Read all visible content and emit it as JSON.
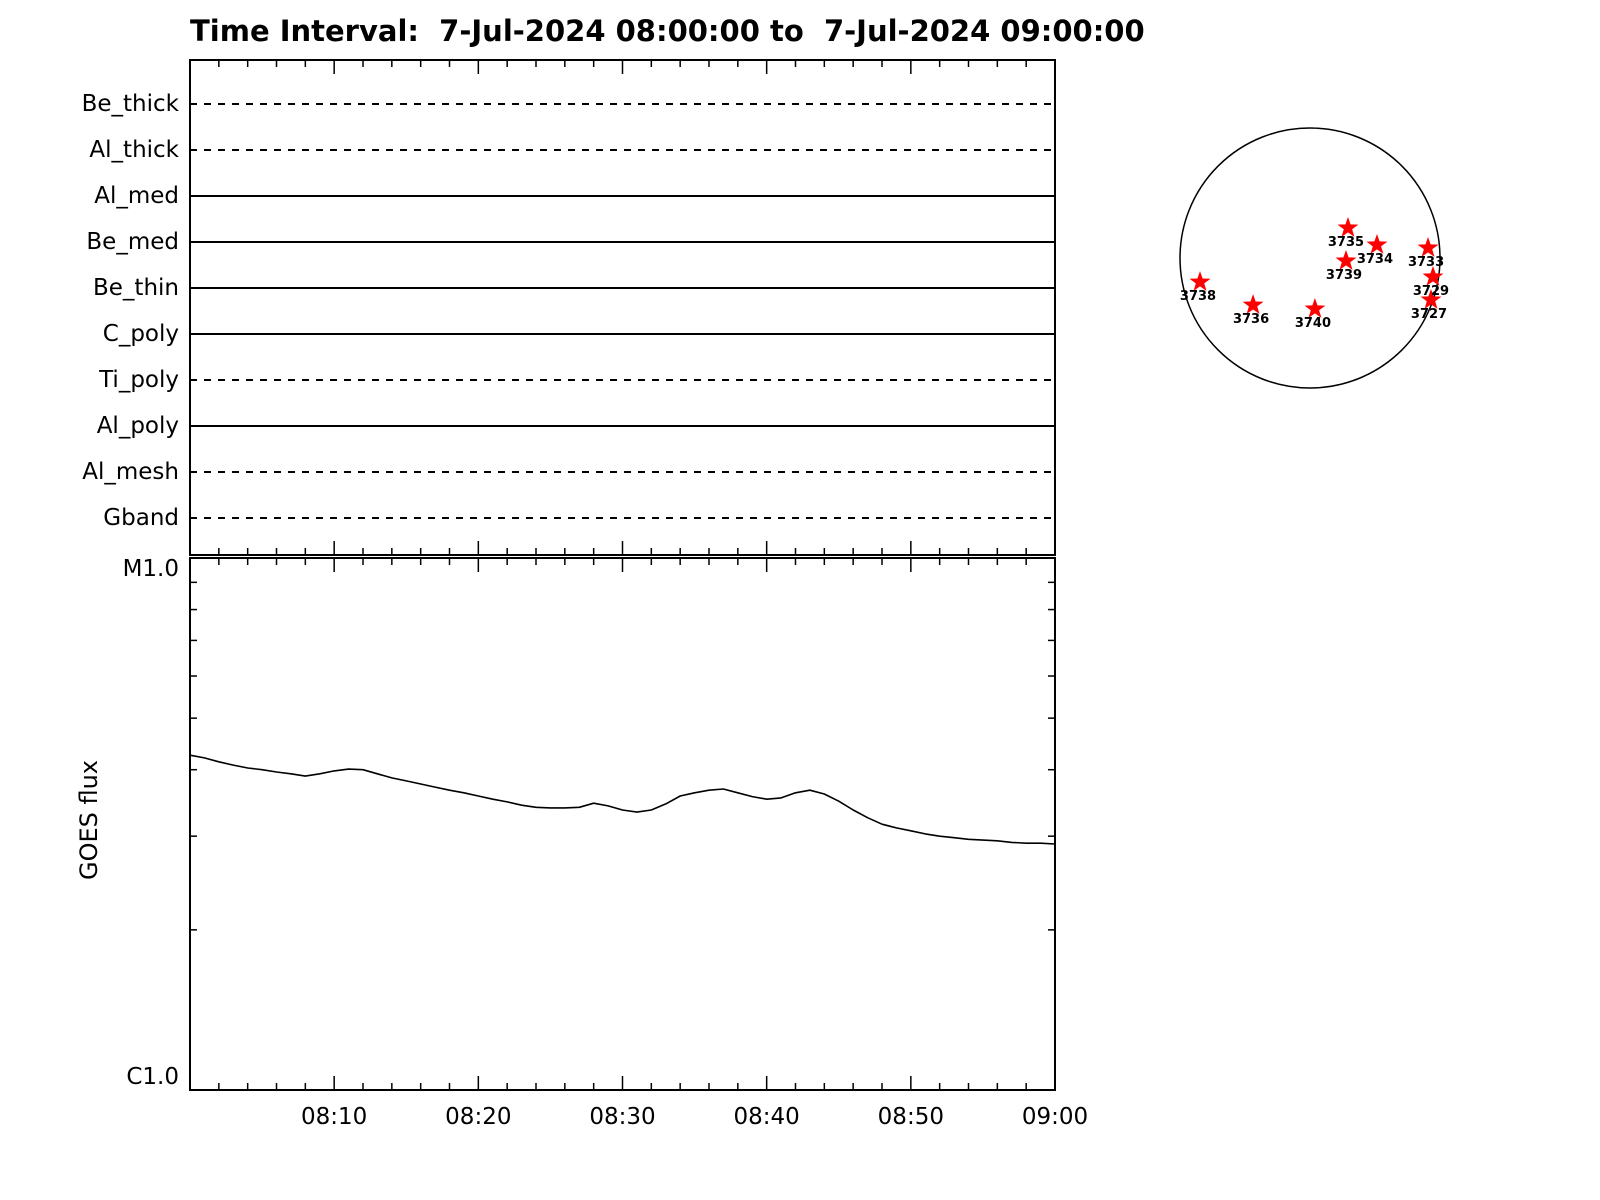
{
  "title": "Time Interval:  7-Jul-2024 08:00:00 to  7-Jul-2024 09:00:00",
  "colors": {
    "ink": "#000000",
    "background": "#ffffff",
    "star": "#ff0000"
  },
  "chart_data": [
    {
      "id": "filter_timeline",
      "type": "line",
      "description": "Instrument filter activity timeline, one horizontal track per filter",
      "x_range": [
        "08:00",
        "09:00"
      ],
      "grid": false,
      "rows": [
        {
          "label": "Be_thick",
          "line_style": "dashed"
        },
        {
          "label": "Al_thick",
          "line_style": "dashed"
        },
        {
          "label": "Al_med",
          "line_style": "solid"
        },
        {
          "label": "Be_med",
          "line_style": "solid"
        },
        {
          "label": "Be_thin",
          "line_style": "solid"
        },
        {
          "label": "C_poly",
          "line_style": "solid"
        },
        {
          "label": "Ti_poly",
          "line_style": "dashed"
        },
        {
          "label": "Al_poly",
          "line_style": "solid"
        },
        {
          "label": "Al_mesh",
          "line_style": "dashed"
        },
        {
          "label": "Gband",
          "line_style": "dashed"
        }
      ]
    },
    {
      "id": "goes_flux",
      "type": "line",
      "ylabel": "GOES flux",
      "y_axis": {
        "top_label": "M1.0",
        "bottom_label": "C1.0",
        "scale": "log",
        "top_value_wm2": 1e-05,
        "bottom_value_wm2": 1e-06
      },
      "x_range": [
        "08:00",
        "09:00"
      ],
      "x_major_tick_step_minutes": 10,
      "x_minor_tick_step_minutes": 2,
      "x_ticks": [
        {
          "minute": 10,
          "label": "08:10"
        },
        {
          "minute": 20,
          "label": "08:20"
        },
        {
          "minute": 30,
          "label": "08:30"
        },
        {
          "minute": 40,
          "label": "08:40"
        },
        {
          "minute": 50,
          "label": "08:50"
        },
        {
          "minute": 60,
          "label": "09:00"
        }
      ],
      "x_minutes": [
        0,
        1,
        2,
        3,
        4,
        5,
        6,
        7,
        8,
        9,
        10,
        11,
        12,
        13,
        14,
        15,
        16,
        17,
        18,
        19,
        20,
        21,
        22,
        23,
        24,
        25,
        26,
        27,
        28,
        29,
        30,
        31,
        32,
        33,
        34,
        35,
        36,
        37,
        38,
        39,
        40,
        41,
        42,
        43,
        44,
        45,
        46,
        47,
        48,
        49,
        50,
        51,
        52,
        53,
        54,
        55,
        56,
        57,
        58,
        59,
        60
      ],
      "flux_c_units": [
        4.26,
        4.21,
        4.14,
        4.08,
        4.03,
        4.0,
        3.96,
        3.93,
        3.89,
        3.93,
        3.98,
        4.01,
        4.0,
        3.93,
        3.86,
        3.81,
        3.76,
        3.71,
        3.66,
        3.62,
        3.57,
        3.52,
        3.48,
        3.43,
        3.4,
        3.39,
        3.39,
        3.4,
        3.46,
        3.42,
        3.36,
        3.33,
        3.36,
        3.45,
        3.57,
        3.62,
        3.66,
        3.68,
        3.62,
        3.56,
        3.52,
        3.54,
        3.62,
        3.66,
        3.6,
        3.49,
        3.36,
        3.25,
        3.16,
        3.11,
        3.07,
        3.03,
        3.0,
        2.98,
        2.96,
        2.95,
        2.94,
        2.92,
        2.91,
        2.91,
        2.9
      ]
    },
    {
      "id": "solar_disk",
      "type": "scatter",
      "description": "Solar disk with flagged active regions, positions in fractions of solar radius (x right, y up)",
      "marker": "star",
      "marker_color": "#ff0000",
      "points": [
        {
          "label": "3735",
          "x": 0.292,
          "y": 0.231
        },
        {
          "label": "3734",
          "x": 0.515,
          "y": 0.1
        },
        {
          "label": "3733",
          "x": 0.908,
          "y": 0.077
        },
        {
          "label": "3739",
          "x": 0.277,
          "y": -0.023
        },
        {
          "label": "3738",
          "x": -0.846,
          "y": -0.185
        },
        {
          "label": "3729",
          "x": 0.946,
          "y": -0.146
        },
        {
          "label": "3736",
          "x": -0.438,
          "y": -0.362
        },
        {
          "label": "3740",
          "x": 0.038,
          "y": -0.392
        },
        {
          "label": "3727",
          "x": 0.931,
          "y": -0.323
        }
      ]
    }
  ]
}
